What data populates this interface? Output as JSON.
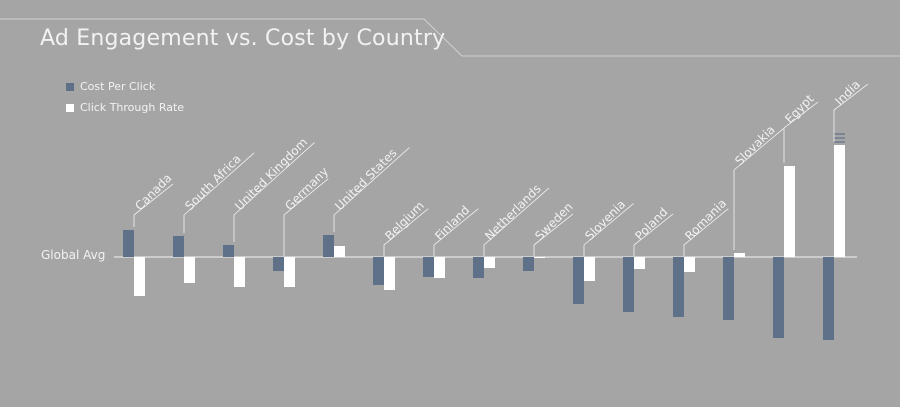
{
  "chart_data": {
    "type": "bar",
    "title": "Ad Engagement vs. Cost by Country",
    "baseline_label": "Global Avg",
    "legend_position": "top-left",
    "categories": [
      "Canada",
      "South Africa",
      "United Kingdom",
      "Germany",
      "United States",
      "Belgium",
      "Finland",
      "Netherlands",
      "Sweden",
      "Slovenia",
      "Poland",
      "Romania",
      "Slovakia",
      "Egypt",
      "India"
    ],
    "series": [
      {
        "name": "Cost Per Click",
        "color": "#5f7089",
        "values": [
          27,
          21,
          12,
          -14,
          22,
          -28,
          -20,
          -21,
          -14,
          -47,
          -55,
          -60,
          -63,
          -81,
          -83
        ]
      },
      {
        "name": "Click Through Rate",
        "color": "#ffffff",
        "values": [
          -39,
          -26,
          -30,
          -30,
          11,
          -33,
          -21,
          -11,
          -1,
          -24,
          -12,
          -15,
          4,
          91,
          112
        ]
      }
    ],
    "ylim": [
      -100,
      180
    ],
    "clipped_marker": "India",
    "grid": false
  },
  "colors": {
    "background": "#a5a5a5",
    "text": "#f2f2f2",
    "lines": "#f2f2f2"
  }
}
